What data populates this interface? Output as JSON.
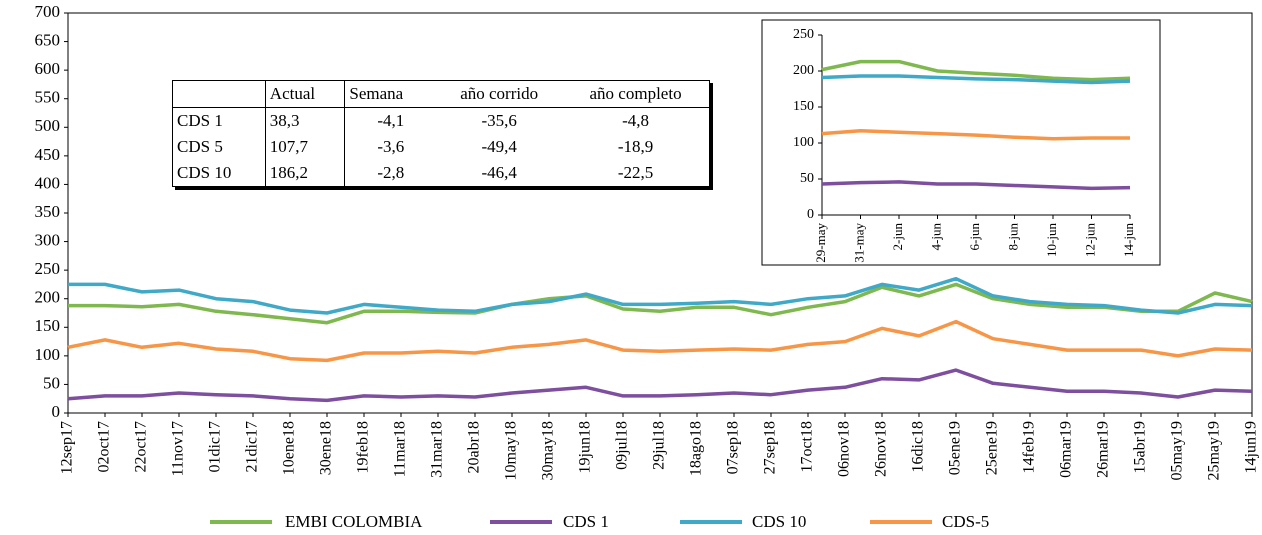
{
  "chart_data": [
    {
      "type": "line",
      "categories": [
        "12sep17",
        "02oct17",
        "22oct17",
        "11nov17",
        "01dic17",
        "21dic17",
        "10ene18",
        "30ene18",
        "19feb18",
        "11mar18",
        "31mar18",
        "20abr18",
        "10may18",
        "30may18",
        "19jun18",
        "09jul18",
        "29jul18",
        "18ago18",
        "07sep18",
        "27sep18",
        "17oct18",
        "06nov18",
        "26nov18",
        "16dic18",
        "05ene19",
        "25ene19",
        "14feb19",
        "06mar19",
        "26mar19",
        "15abr19",
        "05may19",
        "25may19",
        "14jun19"
      ],
      "series": [
        {
          "name": "EMBI COLOMBIA",
          "color": "#7fb84f",
          "values": [
            188,
            188,
            186,
            190,
            178,
            172,
            165,
            158,
            178,
            178,
            176,
            175,
            190,
            200,
            205,
            182,
            178,
            185,
            185,
            172,
            185,
            195,
            220,
            205,
            225,
            200,
            190,
            185,
            185,
            178,
            178,
            210,
            195
          ]
        },
        {
          "name": "CDS 1",
          "color": "#7d4f9e",
          "values": [
            25,
            30,
            30,
            35,
            32,
            30,
            25,
            22,
            30,
            28,
            30,
            28,
            35,
            40,
            45,
            30,
            30,
            32,
            35,
            32,
            40,
            45,
            60,
            58,
            75,
            52,
            45,
            38,
            38,
            35,
            28,
            40,
            38
          ]
        },
        {
          "name": "CDS 10",
          "color": "#3fa9c7",
          "values": [
            225,
            225,
            212,
            215,
            200,
            195,
            180,
            175,
            190,
            185,
            180,
            178,
            190,
            195,
            208,
            190,
            190,
            192,
            195,
            190,
            200,
            205,
            225,
            215,
            235,
            205,
            195,
            190,
            188,
            180,
            175,
            190,
            188
          ]
        },
        {
          "name": "CDS-5",
          "color": "#f79646",
          "values": [
            115,
            128,
            115,
            122,
            112,
            108,
            95,
            92,
            105,
            105,
            108,
            105,
            115,
            120,
            128,
            110,
            108,
            110,
            112,
            110,
            120,
            125,
            148,
            135,
            160,
            130,
            120,
            110,
            110,
            110,
            100,
            112,
            110
          ]
        }
      ],
      "ylim": [
        0,
        700
      ],
      "yticks": [
        0,
        50,
        100,
        150,
        200,
        250,
        300,
        350,
        400,
        450,
        500,
        550,
        600,
        650,
        700
      ]
    },
    {
      "type": "line",
      "categories": [
        "29-may",
        "31-may",
        "2-jun",
        "4-jun",
        "6-jun",
        "8-jun",
        "10-jun",
        "12-jun",
        "14-jun"
      ],
      "series": [
        {
          "color": "#7fb84f",
          "values": [
            202,
            213,
            213,
            200,
            197,
            194,
            190,
            188,
            190
          ]
        },
        {
          "color": "#7d4f9e",
          "values": [
            43,
            45,
            46,
            43,
            43,
            41,
            39,
            37,
            38
          ]
        },
        {
          "color": "#3fa9c7",
          "values": [
            191,
            193,
            193,
            191,
            189,
            188,
            186,
            184,
            186
          ]
        },
        {
          "color": "#f79646",
          "values": [
            113,
            117,
            115,
            113,
            111,
            108,
            106,
            107,
            107
          ]
        }
      ],
      "ylim": [
        0,
        250
      ],
      "yticks": [
        0,
        50,
        100,
        150,
        200,
        250
      ]
    }
  ],
  "table": {
    "header": [
      "Actual",
      "Semana",
      "año corrido",
      "año completo"
    ],
    "rows": [
      [
        "CDS 1",
        "38,3",
        "-4,1",
        "-35,6",
        "-4,8"
      ],
      [
        "CDS 5",
        "107,7",
        "-3,6",
        "-49,4",
        "-18,9"
      ],
      [
        "CDS 10",
        "186,2",
        "-2,8",
        "-46,4",
        "-22,5"
      ]
    ]
  }
}
